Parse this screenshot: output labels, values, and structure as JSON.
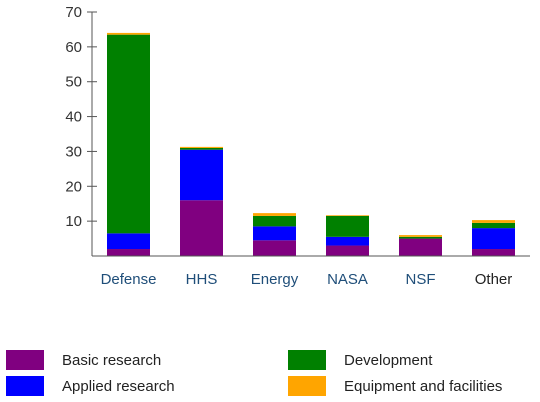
{
  "chart_data": {
    "type": "bar",
    "stacked": true,
    "categories": [
      "Defense",
      "HHS",
      "Energy",
      "NASA",
      "NSF",
      "Other"
    ],
    "category_colors": [
      "#1f4e79",
      "#1f4e79",
      "#1f4e79",
      "#1f4e79",
      "#1f4e79",
      "#222222"
    ],
    "series": [
      {
        "name": "Basic research",
        "color": "#800080",
        "values": [
          2,
          16,
          4.5,
          3,
          5,
          2
        ]
      },
      {
        "name": "Applied research",
        "color": "#0000ff",
        "values": [
          4.5,
          14.5,
          4,
          2.5,
          0,
          6
        ]
      },
      {
        "name": "Development",
        "color": "#008000",
        "values": [
          57,
          0.5,
          3,
          6,
          0.5,
          1.5
        ]
      },
      {
        "name": "Equipment and facilities",
        "color": "#ffa500",
        "values": [
          0.5,
          0.3,
          0.8,
          0.2,
          0.5,
          0.8
        ]
      }
    ],
    "yticks": [
      10,
      20,
      30,
      40,
      50,
      60,
      70
    ],
    "ylim": [
      0,
      70
    ],
    "grid": false,
    "legend_placement": "bottom",
    "title": "",
    "xlabel": "",
    "ylabel": ""
  }
}
